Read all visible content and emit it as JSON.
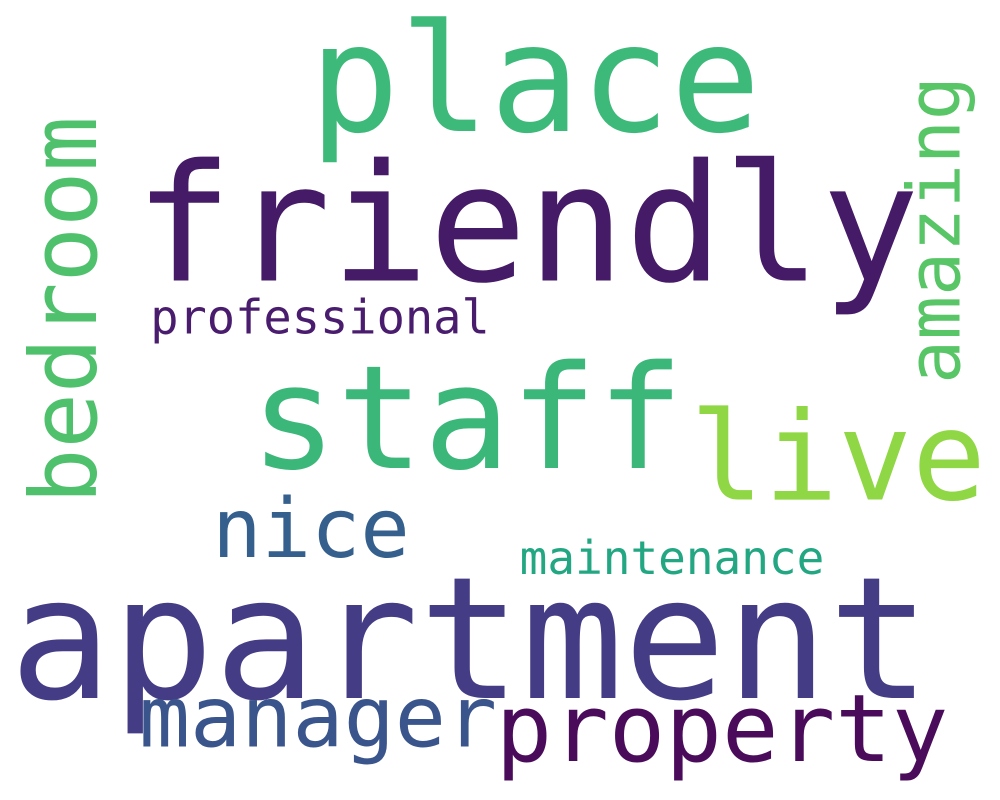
{
  "words": [
    {
      "text": "place",
      "color": "#3dba7a"
    },
    {
      "text": "friendly",
      "color": "#451a66"
    },
    {
      "text": "bedroom",
      "color": "#4fc16c"
    },
    {
      "text": "amazing",
      "color": "#58c566"
    },
    {
      "text": "professional",
      "color": "#4a1c6e"
    },
    {
      "text": "staff",
      "color": "#3bb77a"
    },
    {
      "text": "live",
      "color": "#8fd744"
    },
    {
      "text": "nice",
      "color": "#355f8d"
    },
    {
      "text": "maintenance",
      "color": "#23a783"
    },
    {
      "text": "apartment",
      "color": "#443d85"
    },
    {
      "text": "manager",
      "color": "#3a548c"
    },
    {
      "text": "property",
      "color": "#4a0c5a"
    }
  ]
}
